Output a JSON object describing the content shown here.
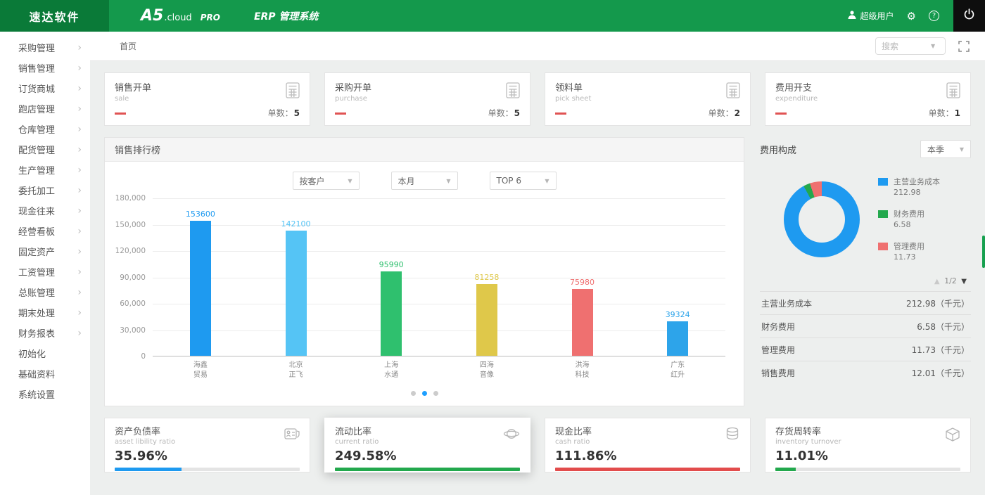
{
  "header": {
    "logo": "速达软件",
    "brand_a5": "A5",
    "brand_cloud": ".cloud",
    "brand_pro": "PRO",
    "system_name": "ERP 管理系统",
    "user_label": "超级用户"
  },
  "sidebar": {
    "items": [
      {
        "label": "采购管理",
        "chevron": true
      },
      {
        "label": "销售管理",
        "chevron": true
      },
      {
        "label": "订货商城",
        "chevron": true
      },
      {
        "label": "跑店管理",
        "chevron": true
      },
      {
        "label": "仓库管理",
        "chevron": true
      },
      {
        "label": "配货管理",
        "chevron": true
      },
      {
        "label": "生产管理",
        "chevron": true
      },
      {
        "label": "委托加工",
        "chevron": true
      },
      {
        "label": "现金往来",
        "chevron": true
      },
      {
        "label": "经营看板",
        "chevron": true
      },
      {
        "label": "固定资产",
        "chevron": true
      },
      {
        "label": "工资管理",
        "chevron": true
      },
      {
        "label": "总账管理",
        "chevron": true
      },
      {
        "label": "期末处理",
        "chevron": true
      },
      {
        "label": "财务报表",
        "chevron": true
      },
      {
        "label": "初始化",
        "chevron": false
      },
      {
        "label": "基础资料",
        "chevron": false
      },
      {
        "label": "系统设置",
        "chevron": false
      }
    ]
  },
  "tabbar": {
    "home_tab": "首页",
    "search_placeholder": "搜索"
  },
  "stat_cards": [
    {
      "title": "销售开单",
      "subtitle": "sale",
      "count_label": "单数：",
      "count": "5"
    },
    {
      "title": "采购开单",
      "subtitle": "purchase",
      "count_label": "单数：",
      "count": "5"
    },
    {
      "title": "领料单",
      "subtitle": "pick sheet",
      "count_label": "单数：",
      "count": "2"
    },
    {
      "title": "费用开支",
      "subtitle": "expenditure",
      "count_label": "单数：",
      "count": "1"
    }
  ],
  "sales_panel": {
    "title": "销售排行榜",
    "filters": [
      "按客户",
      "本月",
      "TOP 6"
    ],
    "pagination": {
      "dots": 3,
      "active": 1
    },
    "chart_data": {
      "type": "bar",
      "categories": [
        [
          "海鑫",
          "贸易"
        ],
        [
          "北京",
          "正飞"
        ],
        [
          "上海",
          "水通"
        ],
        [
          "四海",
          "音像"
        ],
        [
          "洪海",
          "科技"
        ],
        [
          "广东",
          "红升"
        ]
      ],
      "values": [
        153600,
        142100,
        95990,
        81258,
        75980,
        39324
      ],
      "colors": [
        "#1e9af0",
        "#55c4f5",
        "#2fc06e",
        "#dfc84a",
        "#ef7070",
        "#2da4ea"
      ],
      "ylim": [
        0,
        180000
      ],
      "yticks": [
        0,
        30000,
        60000,
        90000,
        120000,
        150000,
        180000
      ],
      "title": "销售排行榜",
      "xlabel": "",
      "ylabel": ""
    }
  },
  "expense_panel": {
    "title": "费用构成",
    "period": "本季",
    "chart_data": {
      "type": "pie",
      "categories": [
        "主营业务成本",
        "财务费用",
        "管理费用"
      ],
      "values": [
        212.98,
        6.58,
        11.73
      ],
      "colors": [
        "#1e9af0",
        "#23a84d",
        "#ef7070"
      ],
      "title": "费用构成"
    },
    "legend": [
      {
        "label": "主营业务成本",
        "value": "212.98",
        "color": "#1e9af0"
      },
      {
        "label": "财务费用",
        "value": "6.58",
        "color": "#23a84d"
      },
      {
        "label": "管理费用",
        "value": "11.73",
        "color": "#ef7070"
      }
    ],
    "pager": "1/2",
    "rows": [
      {
        "label": "主营业务成本",
        "value": "212.98（千元）"
      },
      {
        "label": "财务费用",
        "value": "6.58（千元）"
      },
      {
        "label": "管理费用",
        "value": "11.73（千元）"
      },
      {
        "label": "销售费用",
        "value": "12.01（千元）"
      }
    ]
  },
  "ratio_cards": [
    {
      "title": "资产负债率",
      "subtitle": "asset libility ratio",
      "value": "35.96%",
      "color": "#1e9af0",
      "fill_percent": 36,
      "icon": "idcard-icon",
      "elevated": false
    },
    {
      "title": "流动比率",
      "subtitle": "current ratio",
      "value": "249.58%",
      "color": "#23a84d",
      "fill_percent": 100,
      "icon": "globe-icon",
      "elevated": true
    },
    {
      "title": "现金比率",
      "subtitle": "cash ratio",
      "value": "111.86%",
      "color": "#e24c4c",
      "fill_percent": 100,
      "icon": "coins-icon",
      "elevated": false
    },
    {
      "title": "存货周转率",
      "subtitle": "inventory turnover",
      "value": "11.01%",
      "color": "#23a84d",
      "fill_percent": 11,
      "icon": "box-icon",
      "elevated": false
    }
  ]
}
